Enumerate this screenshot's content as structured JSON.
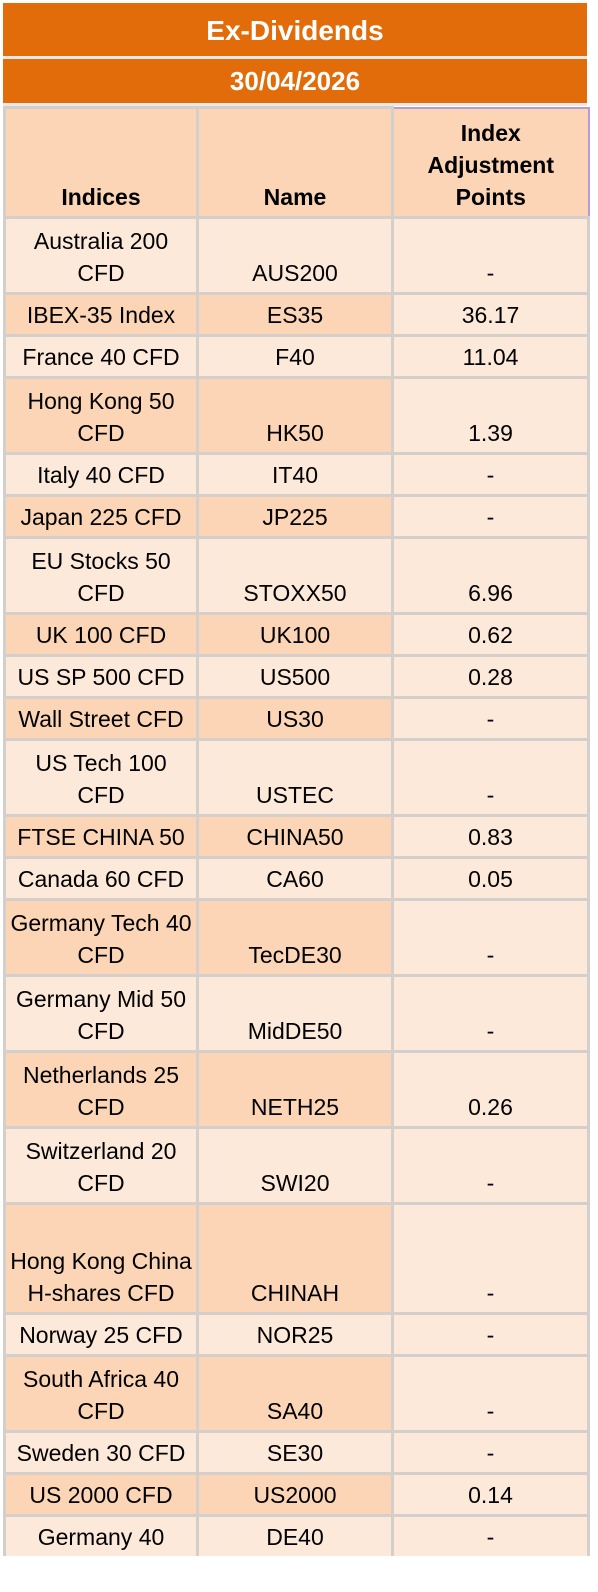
{
  "header": {
    "title": "Ex-Dividends",
    "date": "30/04/2026"
  },
  "table": {
    "columns": [
      "Indices",
      "Name",
      "Index Adjustment Points"
    ],
    "rows": [
      {
        "index": "Australia 200 CFD",
        "name": "AUS200",
        "points": "-"
      },
      {
        "index": "IBEX-35 Index",
        "name": "ES35",
        "points": "36.17"
      },
      {
        "index": "France 40 CFD",
        "name": "F40",
        "points": "11.04"
      },
      {
        "index": "Hong Kong 50 CFD",
        "name": "HK50",
        "points": "1.39"
      },
      {
        "index": "Italy 40 CFD",
        "name": "IT40",
        "points": "-"
      },
      {
        "index": "Japan 225 CFD",
        "name": "JP225",
        "points": "-"
      },
      {
        "index": "EU Stocks 50 CFD",
        "name": "STOXX50",
        "points": "6.96"
      },
      {
        "index": "UK 100 CFD",
        "name": "UK100",
        "points": "0.62"
      },
      {
        "index": "US SP 500 CFD",
        "name": "US500",
        "points": "0.28"
      },
      {
        "index": "Wall Street CFD",
        "name": "US30",
        "points": "-"
      },
      {
        "index": "US Tech 100 CFD",
        "name": "USTEC",
        "points": "-"
      },
      {
        "index": "FTSE CHINA 50",
        "name": "CHINA50",
        "points": "0.83"
      },
      {
        "index": "Canada 60 CFD",
        "name": "CA60",
        "points": "0.05"
      },
      {
        "index": "Germany Tech 40 CFD",
        "name": "TecDE30",
        "points": "-"
      },
      {
        "index": "Germany Mid 50 CFD",
        "name": "MidDE50",
        "points": "-"
      },
      {
        "index": "Netherlands 25 CFD",
        "name": "NETH25",
        "points": "0.26"
      },
      {
        "index": "Switzerland 20 CFD",
        "name": "SWI20",
        "points": "-"
      },
      {
        "index": "Hong Kong China H-shares CFD",
        "name": "CHINAH",
        "points": "-"
      },
      {
        "index": "Norway 25 CFD",
        "name": "NOR25",
        "points": "-"
      },
      {
        "index": "South Africa 40 CFD",
        "name": "SA40",
        "points": "-"
      },
      {
        "index": "Sweden 30 CFD",
        "name": "SE30",
        "points": "-"
      },
      {
        "index": "US 2000 CFD",
        "name": "US2000",
        "points": "0.14"
      },
      {
        "index": "Germany 40",
        "name": "DE40",
        "points": "-"
      }
    ]
  },
  "colors": {
    "banner": "#E36C0A",
    "row_dark": "#FBD5B5",
    "row_light": "#FDE9D9",
    "grid": "#D4CFCB"
  }
}
